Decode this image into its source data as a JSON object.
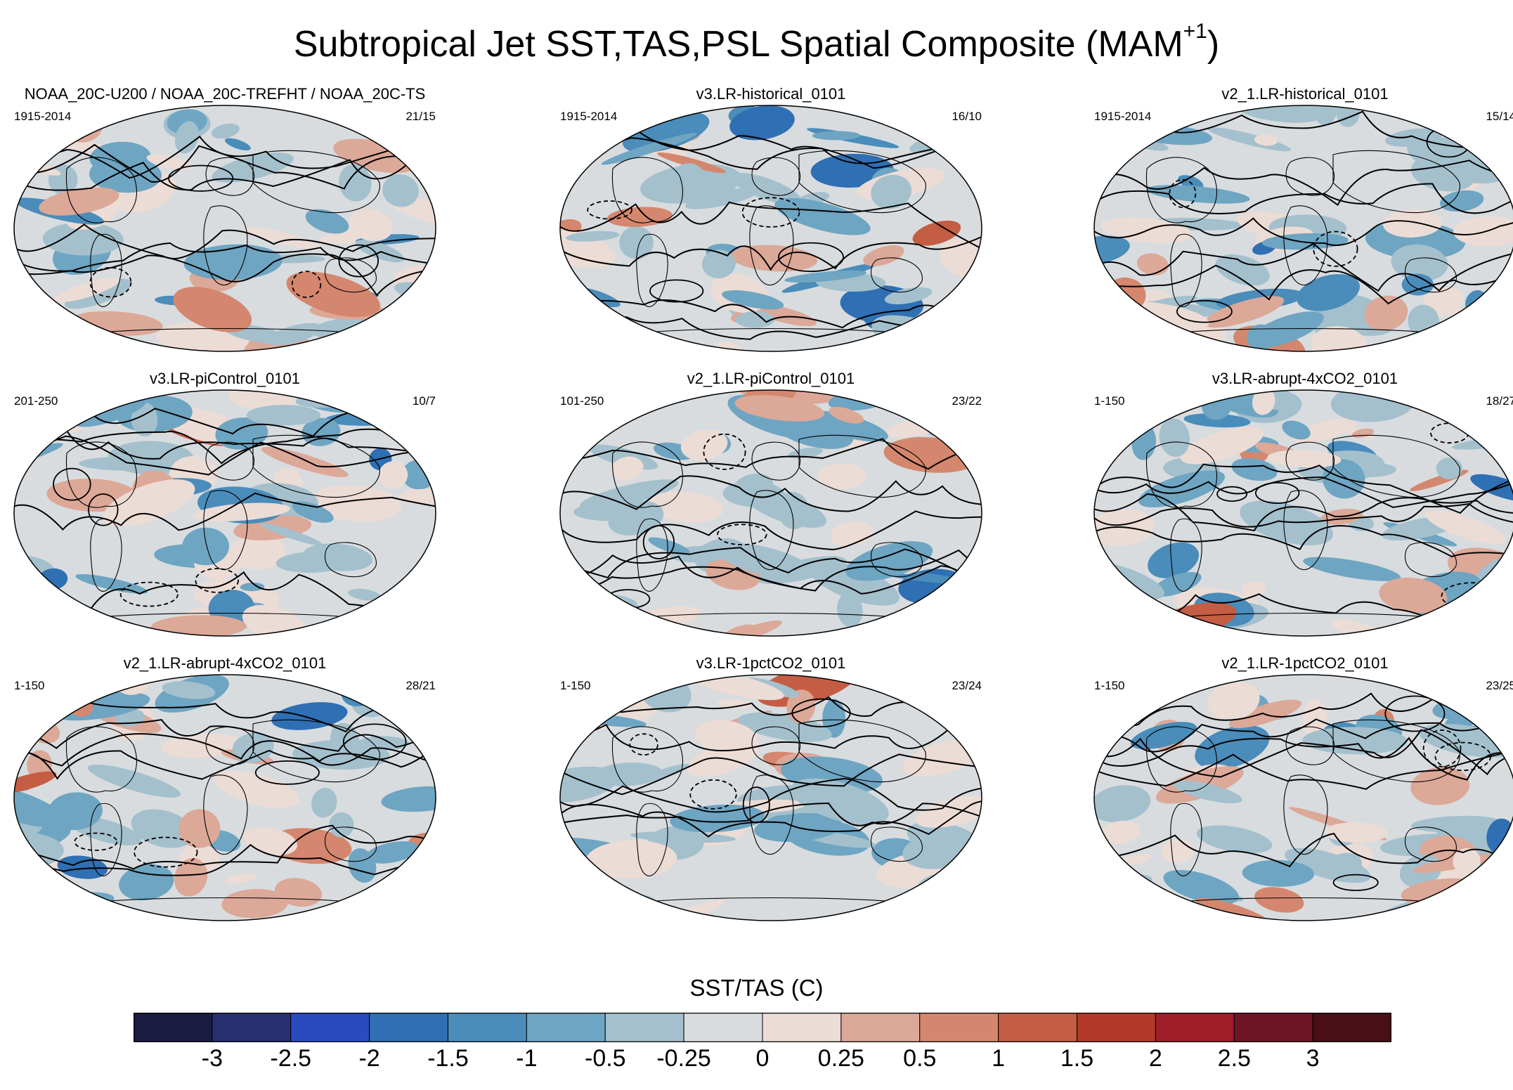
{
  "title": "Subtropical Jet SST,TAS,PSL Spatial Composite (MAM",
  "title_superscript": "+1",
  "title_suffix": ")",
  "chart_data": {
    "type": "heatmap",
    "description_kind": "3x3 grid of global map composites (shaded SST/TAS anomalies, contoured PSL)",
    "panels": [
      {
        "name": "NOAA_20C-U200 / NOAA_20C-TREFHT / NOAA_20C-TS",
        "period": "1915-2014",
        "count": "21/15"
      },
      {
        "name": "v3.LR-historical_0101",
        "period": "1915-2014",
        "count": "16/10"
      },
      {
        "name": "v2_1.LR-historical_0101",
        "period": "1915-2014",
        "count": "15/14"
      },
      {
        "name": "v3.LR-piControl_0101",
        "period": "201-250",
        "count": "10/7"
      },
      {
        "name": "v2_1.LR-piControl_0101",
        "period": "101-250",
        "count": "23/22"
      },
      {
        "name": "v3.LR-abrupt-4xCO2_0101",
        "period": "1-150",
        "count": "18/27"
      },
      {
        "name": "v2_1.LR-abrupt-4xCO2_0101",
        "period": "1-150",
        "count": "28/21"
      },
      {
        "name": "v3.LR-1pctCO2_0101",
        "period": "1-150",
        "count": "23/24"
      },
      {
        "name": "v2_1.LR-1pctCO2_0101",
        "period": "1-150",
        "count": "23/25"
      }
    ],
    "colorbar": {
      "title": "SST/TAS (C)",
      "labels": [
        "-3",
        "-2.5",
        "-2",
        "-1.5",
        "-1",
        "-0.5",
        "-0.25",
        "0",
        "0.25",
        "0.5",
        "1",
        "1.5",
        "2",
        "2.5",
        "3"
      ],
      "levels": [
        -3,
        -2.5,
        -2,
        -1.5,
        -1,
        -0.5,
        -0.25,
        0,
        0.25,
        0.5,
        1,
        1.5,
        2,
        2.5,
        3
      ],
      "colors": [
        "#1a1c40",
        "#27306f",
        "#2a4bbf",
        "#2f6fb3",
        "#4a8cba",
        "#6ea5c2",
        "#a4c0cd",
        "#d8dcdf",
        "#ecdcd6",
        "#dca898",
        "#d4876e",
        "#c45d43",
        "#b23a2a",
        "#9e1e2a",
        "#6e1526",
        "#4a0e18"
      ]
    }
  }
}
